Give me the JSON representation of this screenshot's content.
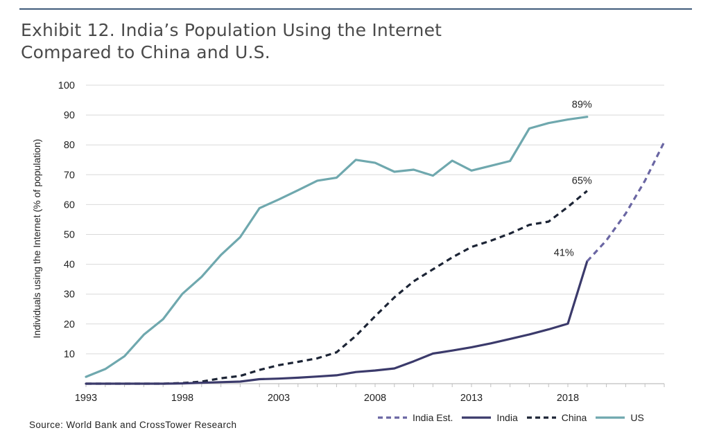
{
  "title_lines": [
    "Exhibit 12. India’s Population Using the Internet",
    "Compared to China and U.S."
  ],
  "source": "Source: World Bank and CrossTower Research",
  "chart_data": {
    "type": "line",
    "title": "Exhibit 12. India’s Population Using the Internet Compared to China and U.S.",
    "xlabel": "",
    "ylabel": "Individuals using the Internet (% of population)",
    "xlim": [
      1993,
      2023
    ],
    "ylim": [
      0,
      100
    ],
    "x_ticks": [
      1993,
      1998,
      2003,
      2008,
      2013,
      2018
    ],
    "y_ticks": [
      10,
      20,
      30,
      40,
      50,
      60,
      70,
      80,
      90,
      100
    ],
    "grid": "horizontal",
    "legend": "bottom-right",
    "series": [
      {
        "name": "US",
        "color": "#6fa8ae",
        "style": "solid",
        "x": [
          1993,
          1994,
          1995,
          1996,
          1997,
          1998,
          1999,
          2000,
          2001,
          2002,
          2003,
          2004,
          2005,
          2006,
          2007,
          2008,
          2009,
          2010,
          2011,
          2012,
          2013,
          2014,
          2015,
          2016,
          2017,
          2018,
          2019
        ],
        "values": [
          2.3,
          4.9,
          9.2,
          16.4,
          21.6,
          30.1,
          35.8,
          43.1,
          49.1,
          58.8,
          61.7,
          64.8,
          68.0,
          69.0,
          75.0,
          74.0,
          71.0,
          71.7,
          69.7,
          74.7,
          71.4,
          73.0,
          74.6,
          85.5,
          87.3,
          88.5,
          89.4
        ]
      },
      {
        "name": "China",
        "color": "#1c2435",
        "style": "dashed",
        "x": [
          1993,
          1994,
          1995,
          1996,
          1997,
          1998,
          1999,
          2000,
          2001,
          2002,
          2003,
          2004,
          2005,
          2006,
          2007,
          2008,
          2009,
          2010,
          2011,
          2012,
          2013,
          2014,
          2015,
          2016,
          2017,
          2018,
          2019
        ],
        "values": [
          0,
          0,
          0,
          0,
          0,
          0.2,
          0.7,
          1.8,
          2.6,
          4.6,
          6.2,
          7.3,
          8.5,
          10.5,
          16.0,
          22.6,
          28.9,
          34.3,
          38.3,
          42.3,
          45.8,
          47.9,
          50.3,
          53.2,
          54.3,
          59.2,
          64.6
        ]
      },
      {
        "name": "India",
        "color": "#3b3a6b",
        "style": "solid",
        "x": [
          1993,
          1994,
          1995,
          1996,
          1997,
          1998,
          1999,
          2000,
          2001,
          2002,
          2003,
          2004,
          2005,
          2006,
          2007,
          2008,
          2009,
          2010,
          2011,
          2012,
          2013,
          2014,
          2015,
          2016,
          2017,
          2018,
          2019
        ],
        "values": [
          0,
          0,
          0,
          0,
          0,
          0.1,
          0.3,
          0.5,
          0.7,
          1.5,
          1.7,
          2.0,
          2.4,
          2.8,
          3.9,
          4.4,
          5.1,
          7.5,
          10.1,
          11.1,
          12.2,
          13.5,
          15.0,
          16.5,
          18.2,
          20.1,
          41.0
        ]
      },
      {
        "name": "India Est.",
        "color": "#6a66a3",
        "style": "dashed",
        "x": [
          2019,
          2020,
          2021,
          2022,
          2023
        ],
        "values": [
          41.0,
          48.0,
          57.0,
          68.0,
          81.0
        ]
      }
    ],
    "annotations": [
      {
        "text": "89%",
        "x": 2019,
        "y": 89.4
      },
      {
        "text": "65%",
        "x": 2019,
        "y": 64.6
      },
      {
        "text": "41%",
        "x": 2019,
        "y": 41.0
      }
    ]
  }
}
